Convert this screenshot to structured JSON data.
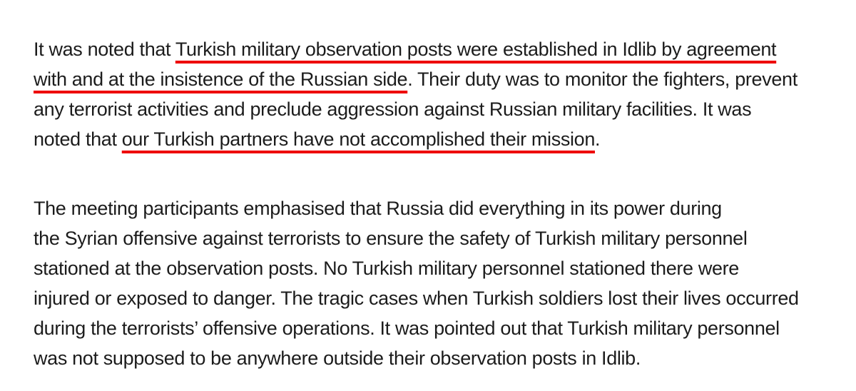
{
  "paragraphs": [
    {
      "lines": [
        {
          "before": "It was noted that ",
          "highlight": "Turkish military observation posts were established in Idlib by agreement",
          "after": ""
        },
        {
          "before": "",
          "highlight": "with and at the insistence of the Russian side",
          "after": ". Their duty was to monitor the fighters, prevent"
        },
        {
          "before": "any terrorist activities and preclude aggression against Russian military facilities. It was",
          "highlight": "",
          "after": ""
        },
        {
          "before": "noted that ",
          "highlight": "our Turkish partners have not accomplished their mission",
          "after": "."
        }
      ]
    },
    {
      "lines": [
        "The meeting participants emphasised that Russia did everything in its power during",
        "the Syrian offensive against terrorists to ensure the safety of Turkish military personnel",
        "stationed at the observation posts. No Turkish military personnel stationed there were",
        "injured or exposed to danger. The tragic cases when Turkish soldiers lost their lives occurred",
        "during the terrorists’ offensive operations. It was pointed out that Turkish military personnel",
        "was not supposed to be anywhere outside their observation posts in Idlib."
      ]
    }
  ],
  "colors": {
    "text": "#1c1c1c",
    "underline": "#ee0000",
    "background": "#ffffff"
  }
}
